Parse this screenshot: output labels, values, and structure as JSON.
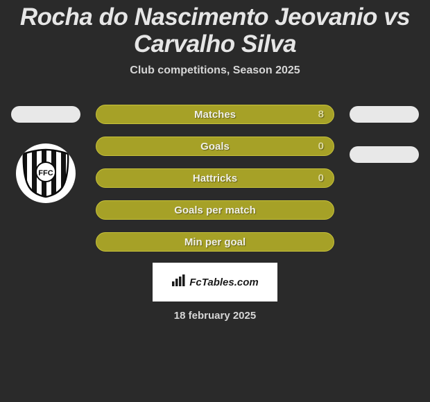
{
  "title": "Rocha do Nascimento Jeovanio vs Carvalho Silva",
  "title_fontsize": 35,
  "title_color": "#e6e6e6",
  "subtitle": "Club competitions, Season 2025",
  "subtitle_fontsize": 16,
  "subtitle_color": "#d6d6d6",
  "background_color": "#2a2a2a",
  "bars": [
    {
      "label": "Matches",
      "value": "8",
      "show_value": true
    },
    {
      "label": "Goals",
      "value": "0",
      "show_value": true
    },
    {
      "label": "Hattricks",
      "value": "0",
      "show_value": true
    },
    {
      "label": "Goals per match",
      "value": "",
      "show_value": false
    },
    {
      "label": "Min per goal",
      "value": "",
      "show_value": false
    }
  ],
  "bar_style": {
    "fill_color": "#a6a127",
    "border_color": "#c7c23a",
    "label_color": "#f0f0e8",
    "label_fontsize": 15,
    "value_color": "#dedba0",
    "value_fontsize": 15
  },
  "side_pill_color": "#e8e8e8",
  "left_logo": {
    "bg": "#ffffff",
    "stripe_dark": "#121212",
    "badge_border": "#0a0a0a",
    "badge_text_color": "#0a0a0a"
  },
  "watermark": {
    "icon_color": "#1a1a1a",
    "text": "FcTables.com",
    "fontsize": 15
  },
  "date": "18 february 2025",
  "date_fontsize": 15,
  "date_color": "#d6d6d6"
}
